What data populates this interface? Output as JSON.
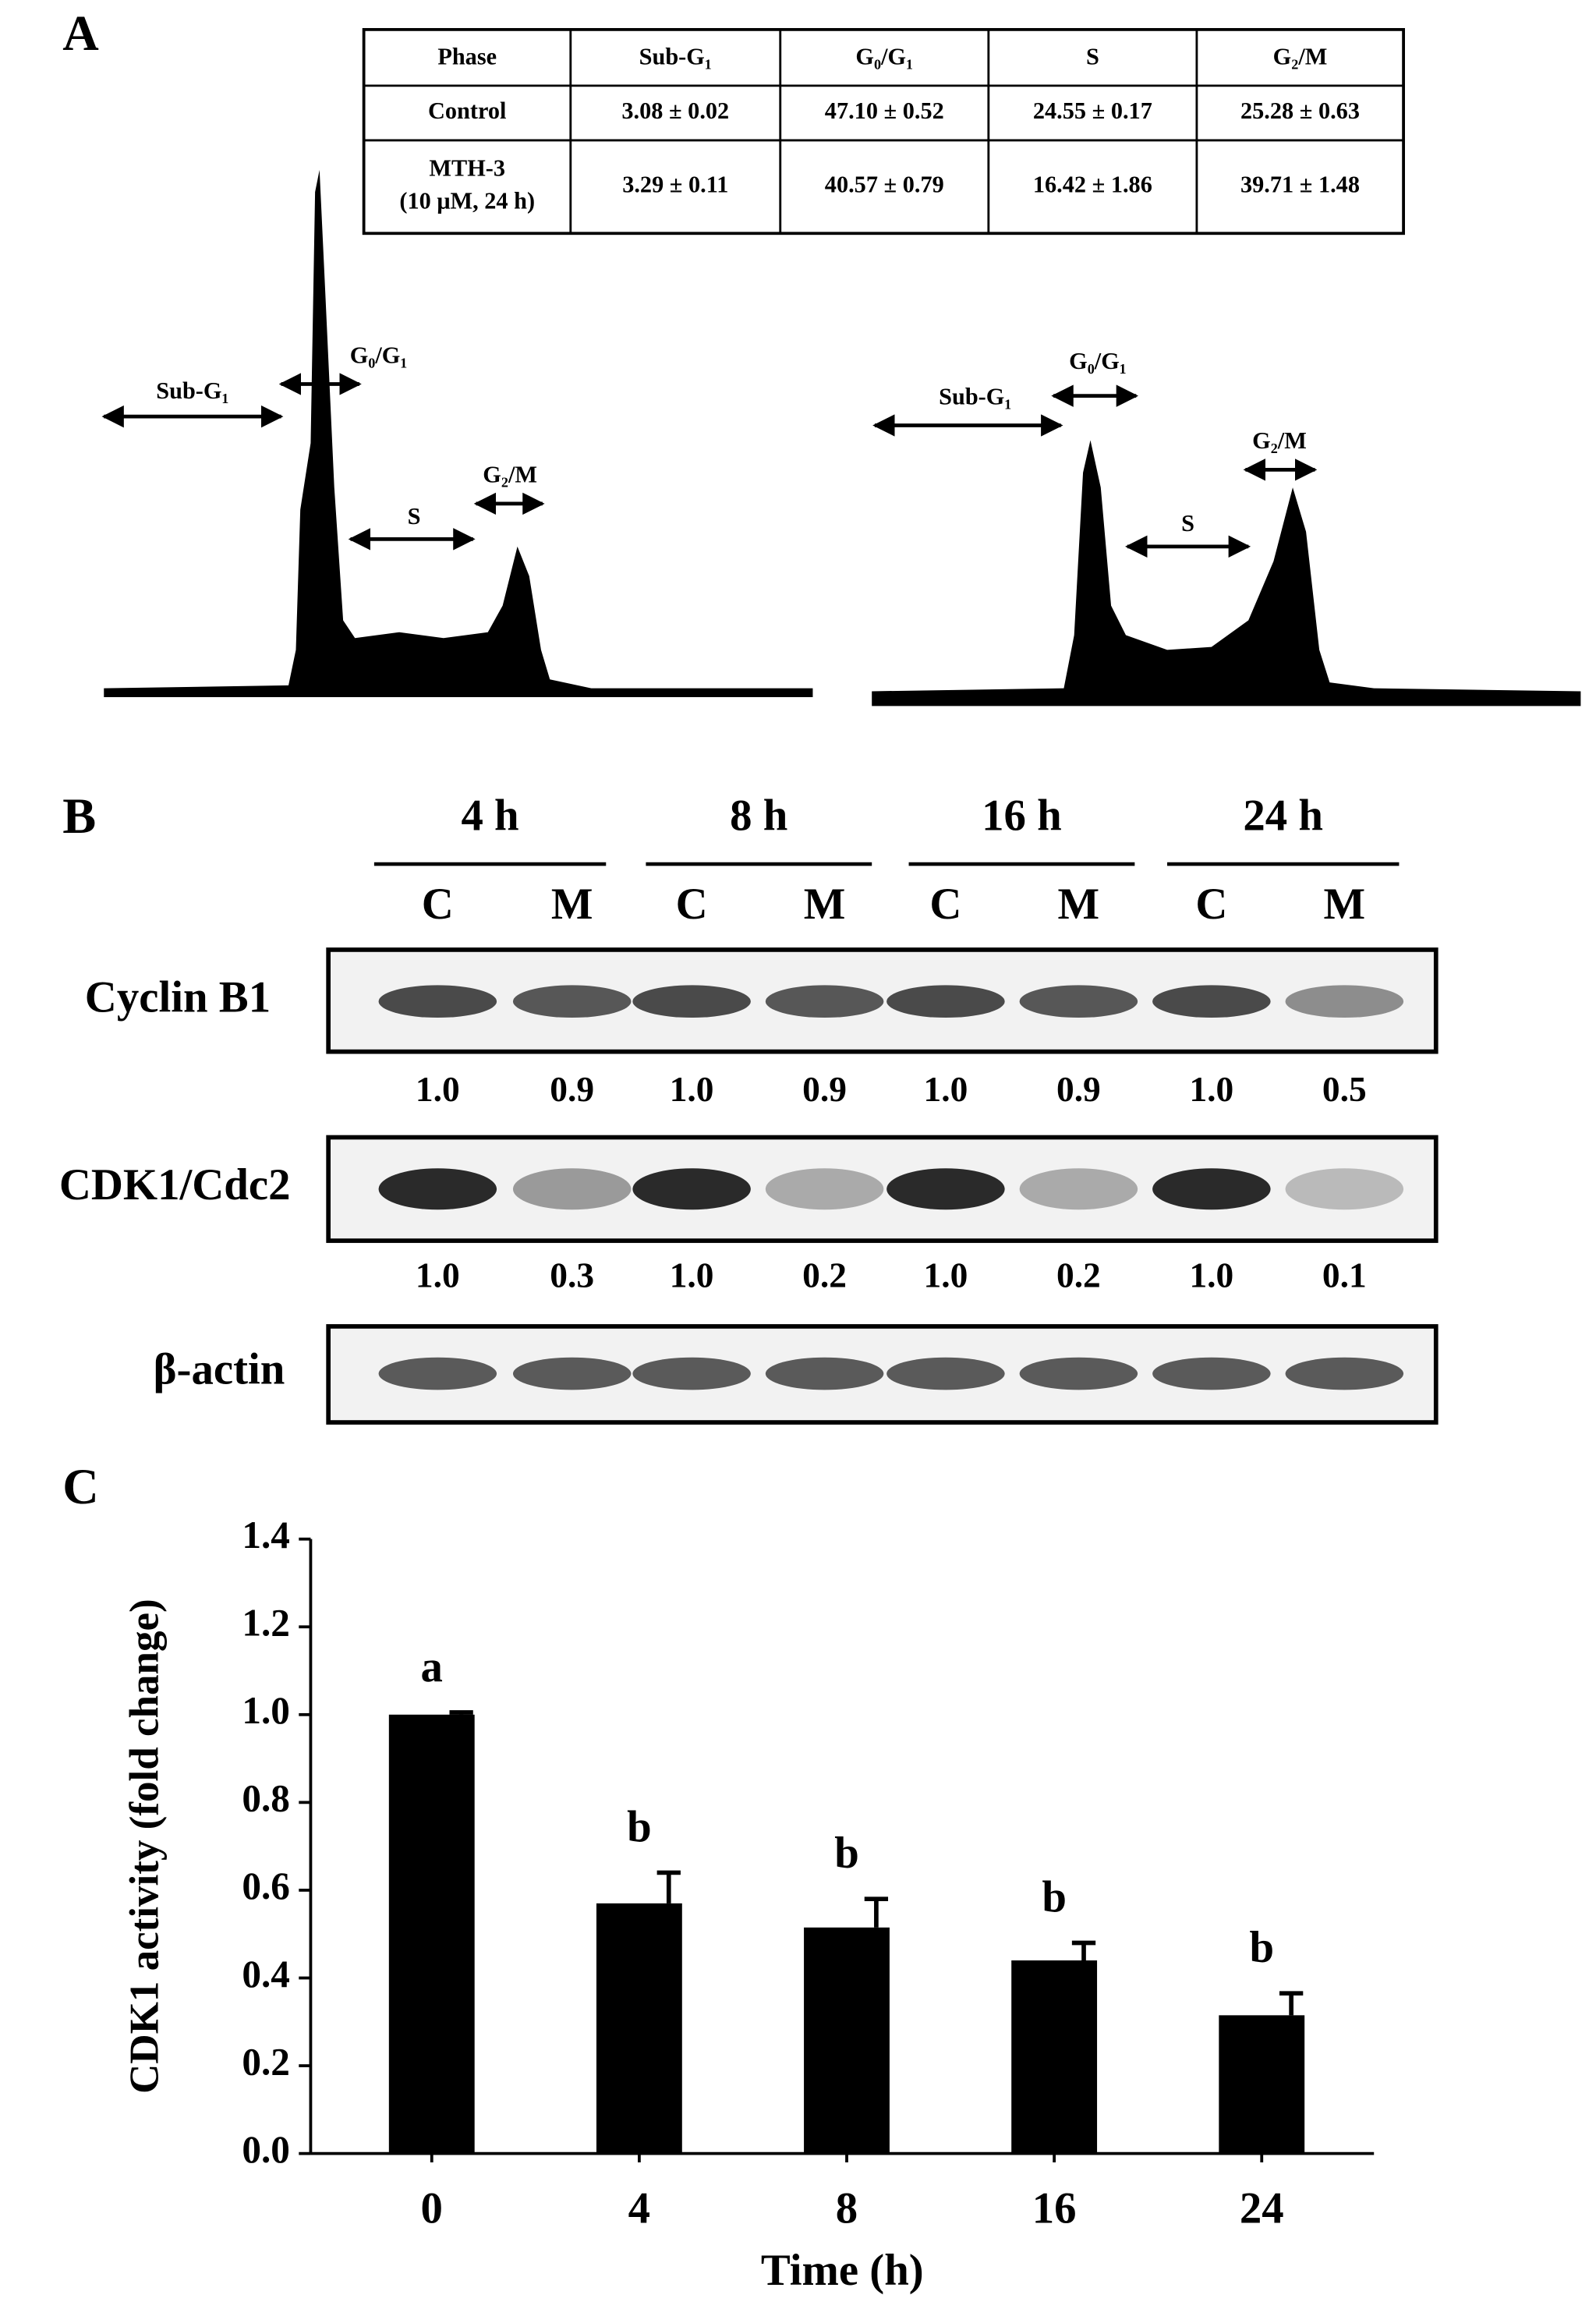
{
  "panel_labels": [
    "A",
    "B",
    "C"
  ],
  "table": {
    "header": [
      "Phase",
      "Sub-G₁",
      "G₀/G₁",
      "S",
      "G₂/M"
    ],
    "rows": [
      {
        "label": [
          "Control"
        ],
        "cells": [
          "3.08 ± 0.02",
          "47.10 ± 0.52",
          "24.55 ± 0.17",
          "25.28 ± 0.63"
        ]
      },
      {
        "label": [
          "MTH-3",
          "(10 μM, 24 h)"
        ],
        "cells": [
          "3.29 ± 0.11",
          "40.57 ± 0.79",
          "16.42 ± 1.86",
          "39.71 ± 1.48"
        ]
      }
    ]
  },
  "histograms": [
    {
      "markers": [
        "Sub-G₁",
        "G₀/G₁",
        "S",
        "G₂/M"
      ]
    },
    {
      "markers": [
        "Sub-G₁",
        "G₀/G₁",
        "S",
        "G₂/M"
      ]
    }
  ],
  "blot": {
    "times": [
      "4 h",
      "8 h",
      "16 h",
      "24 h"
    ],
    "lanes": [
      "C",
      "M",
      "C",
      "M",
      "C",
      "M",
      "C",
      "M"
    ],
    "proteins": [
      {
        "name": "Cyclin B1",
        "ratios": [
          "1.0",
          "0.9",
          "1.0",
          "0.9",
          "1.0",
          "0.9",
          "1.0",
          "0.5"
        ]
      },
      {
        "name": "CDK1/Cdc2",
        "ratios": [
          "1.0",
          "0.3",
          "1.0",
          "0.2",
          "1.0",
          "0.2",
          "1.0",
          "0.1"
        ]
      },
      {
        "name": "β-actin"
      }
    ]
  },
  "chart_data": {
    "type": "bar",
    "ylabel": "CDK1 activity (fold change)",
    "xlabel": "Time (h)",
    "categories": [
      "0",
      "4",
      "8",
      "16",
      "24"
    ],
    "values": [
      1.0,
      0.57,
      0.515,
      0.44,
      0.315
    ],
    "errors": [
      0.005,
      0.07,
      0.065,
      0.04,
      0.05
    ],
    "annotations": [
      "a",
      "b",
      "b",
      "b",
      "b"
    ],
    "color": "#000000",
    "ylim": [
      0,
      1.4
    ],
    "yticks": [
      {
        "value": 0,
        "label": "0.0"
      },
      {
        "value": 0.2,
        "label": "0.2"
      },
      {
        "value": 0.4,
        "label": "0.4"
      },
      {
        "value": 0.6,
        "label": "0.6"
      },
      {
        "value": 0.8,
        "label": "0.8"
      },
      {
        "value": 1.0,
        "label": "1.0"
      },
      {
        "value": 1.2,
        "label": "1.2"
      },
      {
        "value": 1.4,
        "label": "1.4"
      }
    ]
  }
}
